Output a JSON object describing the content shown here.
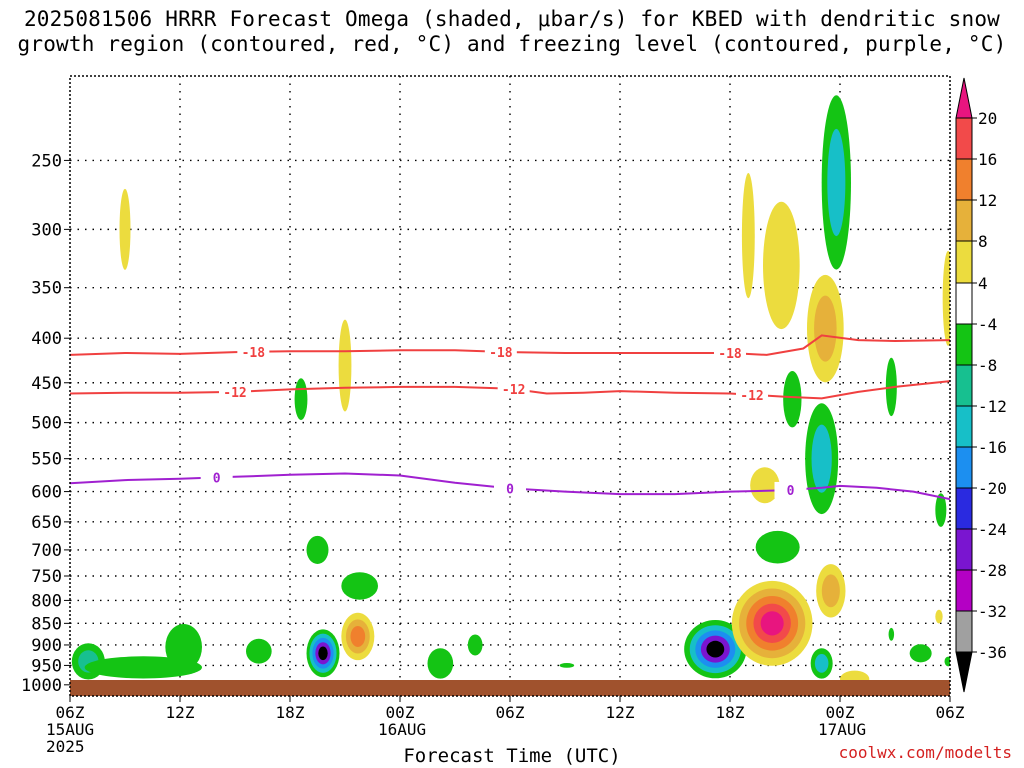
{
  "chart_data": {
    "type": "heatmap",
    "title_line1": "2025081506 HRRR Forecast Omega (shaded, μbar/s) for KBED with dendritic snow",
    "title_line2": "growth region (contoured, red, °C) and freezing level (contoured, purple, °C)",
    "xlabel": "Forecast Time (UTC)",
    "credit": "coolwx.com/modelts",
    "x_hours": [
      0,
      48
    ],
    "x_ticks": [
      {
        "h": 0,
        "label": "06Z",
        "date": "15AUG",
        "year": "2025"
      },
      {
        "h": 6,
        "label": "12Z"
      },
      {
        "h": 12,
        "label": "18Z"
      },
      {
        "h": 18,
        "label": "00Z",
        "date": "16AUG"
      },
      {
        "h": 24,
        "label": "06Z"
      },
      {
        "h": 30,
        "label": "12Z"
      },
      {
        "h": 36,
        "label": "18Z"
      },
      {
        "h": 42,
        "label": "00Z",
        "date": "17AUG"
      },
      {
        "h": 48,
        "label": "06Z"
      }
    ],
    "y_pressure_range": [
      200,
      1030
    ],
    "y_ticks": [
      250,
      300,
      350,
      400,
      450,
      500,
      550,
      600,
      650,
      700,
      750,
      800,
      850,
      900,
      950,
      1000
    ],
    "grid": true,
    "colorbar": {
      "labels": [
        "20",
        "16",
        "12",
        "8",
        "4",
        "-4",
        "-8",
        "-12",
        "-16",
        "-20",
        "-24",
        "-28",
        "-32",
        "-36"
      ],
      "colors": [
        "#e8157f",
        "#f24a4a",
        "#f0802d",
        "#e6b13a",
        "#ecdc3e",
        "#ffffff",
        "#14c414",
        "#17c090",
        "#17bfc8",
        "#1c8ff0",
        "#2a2ae0",
        "#7a15d0",
        "#b400c4",
        "#a0a0a0",
        "#000000"
      ]
    },
    "contours": [
      {
        "label": "-18",
        "color": "#f04040",
        "points": [
          [
            0,
            418
          ],
          [
            3,
            416
          ],
          [
            6,
            417
          ],
          [
            9,
            415
          ],
          [
            12,
            414
          ],
          [
            15,
            414
          ],
          [
            18,
            413
          ],
          [
            21,
            413
          ],
          [
            24,
            415
          ],
          [
            27,
            416
          ],
          [
            30,
            416
          ],
          [
            33,
            416
          ],
          [
            36,
            416
          ],
          [
            38,
            418
          ],
          [
            40,
            411
          ],
          [
            41,
            397
          ],
          [
            43,
            402
          ],
          [
            45,
            403
          ],
          [
            48,
            402
          ]
        ],
        "label_hours": [
          10,
          23.5,
          36
        ]
      },
      {
        "label": "-12",
        "color": "#f04040",
        "points": [
          [
            0,
            463
          ],
          [
            3,
            462
          ],
          [
            6,
            462
          ],
          [
            9,
            461
          ],
          [
            12,
            458
          ],
          [
            15,
            456
          ],
          [
            18,
            455
          ],
          [
            21,
            455
          ],
          [
            24,
            457
          ],
          [
            26,
            463
          ],
          [
            28,
            462
          ],
          [
            30,
            460
          ],
          [
            33,
            462
          ],
          [
            36,
            463
          ],
          [
            39,
            467
          ],
          [
            41,
            469
          ],
          [
            43,
            461
          ],
          [
            45,
            455
          ],
          [
            48,
            448
          ]
        ],
        "label_hours": [
          9,
          24.2,
          37.2
        ]
      },
      {
        "label": "0",
        "color": "#a020d0",
        "points": [
          [
            0,
            587
          ],
          [
            3,
            582
          ],
          [
            6,
            580
          ],
          [
            9,
            577
          ],
          [
            12,
            574
          ],
          [
            15,
            572
          ],
          [
            18,
            575
          ],
          [
            21,
            586
          ],
          [
            24,
            595
          ],
          [
            27,
            600
          ],
          [
            30,
            604
          ],
          [
            33,
            604
          ],
          [
            36,
            600
          ],
          [
            39,
            598
          ],
          [
            41,
            594
          ],
          [
            42,
            591
          ],
          [
            44,
            594
          ],
          [
            46,
            600
          ],
          [
            48,
            612
          ]
        ],
        "label_hours": [
          8,
          24,
          39.3
        ]
      }
    ],
    "features": [
      {
        "h": 3.0,
        "p": 300,
        "rh": 0.3,
        "rp": 32,
        "levels": [
          "#ecdc3e"
        ]
      },
      {
        "h": 12.6,
        "p": 470,
        "rh": 0.35,
        "rp": 26,
        "levels": [
          "#14c414"
        ]
      },
      {
        "h": 15.0,
        "p": 430,
        "rh": 0.35,
        "rp": 52,
        "levels": [
          "#ecdc3e"
        ]
      },
      {
        "h": 1.0,
        "p": 940,
        "rh": 0.9,
        "rp": 45,
        "levels": [
          "#14c414",
          "#17c090"
        ]
      },
      {
        "h": 4.0,
        "p": 955,
        "rh": 3.2,
        "rp": 28,
        "levels": [
          "#14c414"
        ]
      },
      {
        "h": 6.2,
        "p": 905,
        "rh": 1.0,
        "rp": 55,
        "levels": [
          "#14c414"
        ]
      },
      {
        "h": 10.3,
        "p": 915,
        "rh": 0.7,
        "rp": 30,
        "levels": [
          "#14c414"
        ]
      },
      {
        "h": 13.8,
        "p": 920,
        "rh": 0.9,
        "rp": 58,
        "levels": [
          "#14c414",
          "#17bfc8",
          "#1c8ff0",
          "#7a15d0",
          "#000000"
        ]
      },
      {
        "h": 15.7,
        "p": 880,
        "rh": 0.9,
        "rp": 55,
        "levels": [
          "#ecdc3e",
          "#e6b13a",
          "#f0802d"
        ]
      },
      {
        "h": 13.5,
        "p": 700,
        "rh": 0.6,
        "rp": 26,
        "levels": [
          "#14c414"
        ]
      },
      {
        "h": 15.8,
        "p": 770,
        "rh": 1.0,
        "rp": 28,
        "levels": [
          "#14c414"
        ]
      },
      {
        "h": 20.2,
        "p": 945,
        "rh": 0.7,
        "rp": 38,
        "levels": [
          "#14c414"
        ]
      },
      {
        "h": 22.1,
        "p": 900,
        "rh": 0.4,
        "rp": 25,
        "levels": [
          "#14c414"
        ]
      },
      {
        "h": 27.1,
        "p": 950,
        "rh": 0.4,
        "rp": 6,
        "levels": [
          "#14c414"
        ]
      },
      {
        "h": 35.2,
        "p": 910,
        "rh": 1.7,
        "rp": 70,
        "levels": [
          "#14c414",
          "#17bfc8",
          "#1c8ff0",
          "#7a15d0",
          "#000000"
        ]
      },
      {
        "h": 38.3,
        "p": 850,
        "rh": 2.2,
        "rp": 95,
        "levels": [
          "#ecdc3e",
          "#e6b13a",
          "#f0802d",
          "#f24a4a",
          "#e8157f"
        ]
      },
      {
        "h": 37.0,
        "p": 305,
        "rh": 0.35,
        "rp": 50,
        "levels": [
          "#ecdc3e"
        ]
      },
      {
        "h": 38.8,
        "p": 330,
        "rh": 1.0,
        "rp": 55,
        "levels": [
          "#ecdc3e"
        ]
      },
      {
        "h": 41.8,
        "p": 265,
        "rh": 0.8,
        "rp": 60,
        "levels": [
          "#14c414",
          "#17bfc8"
        ]
      },
      {
        "h": 41.2,
        "p": 390,
        "rh": 1.0,
        "rp": 55,
        "levels": [
          "#ecdc3e",
          "#e6b13a"
        ]
      },
      {
        "h": 39.4,
        "p": 470,
        "rh": 0.5,
        "rp": 35,
        "levels": [
          "#14c414"
        ]
      },
      {
        "h": 41.0,
        "p": 550,
        "rh": 0.9,
        "rp": 80,
        "levels": [
          "#14c414",
          "#17bfc8"
        ]
      },
      {
        "h": 37.9,
        "p": 590,
        "rh": 0.8,
        "rp": 28,
        "levels": [
          "#ecdc3e"
        ]
      },
      {
        "h": 38.6,
        "p": 695,
        "rh": 1.2,
        "rp": 30,
        "levels": [
          "#14c414"
        ]
      },
      {
        "h": 41.5,
        "p": 780,
        "rh": 0.8,
        "rp": 55,
        "levels": [
          "#ecdc3e",
          "#e6b13a"
        ]
      },
      {
        "h": 41.0,
        "p": 945,
        "rh": 0.6,
        "rp": 38,
        "levels": [
          "#14c414",
          "#17bfc8"
        ]
      },
      {
        "h": 42.8,
        "p": 985,
        "rh": 0.8,
        "rp": 22,
        "levels": [
          "#ecdc3e"
        ]
      },
      {
        "h": 44.8,
        "p": 455,
        "rh": 0.3,
        "rp": 35,
        "levels": [
          "#14c414"
        ]
      },
      {
        "h": 47.5,
        "p": 630,
        "rh": 0.3,
        "rp": 28,
        "levels": [
          "#14c414"
        ]
      },
      {
        "h": 47.9,
        "p": 360,
        "rh": 0.3,
        "rp": 45,
        "levels": [
          "#ecdc3e"
        ]
      },
      {
        "h": 44.8,
        "p": 875,
        "rh": 0.15,
        "rp": 15,
        "levels": [
          "#14c414"
        ]
      },
      {
        "h": 46.4,
        "p": 920,
        "rh": 0.6,
        "rp": 22,
        "levels": [
          "#14c414"
        ]
      },
      {
        "h": 47.4,
        "p": 835,
        "rh": 0.2,
        "rp": 15,
        "levels": [
          "#ecdc3e"
        ]
      },
      {
        "h": 47.9,
        "p": 940,
        "rh": 0.2,
        "rp": 12,
        "levels": [
          "#14c414"
        ]
      }
    ],
    "ground_color": "#a0522d"
  }
}
